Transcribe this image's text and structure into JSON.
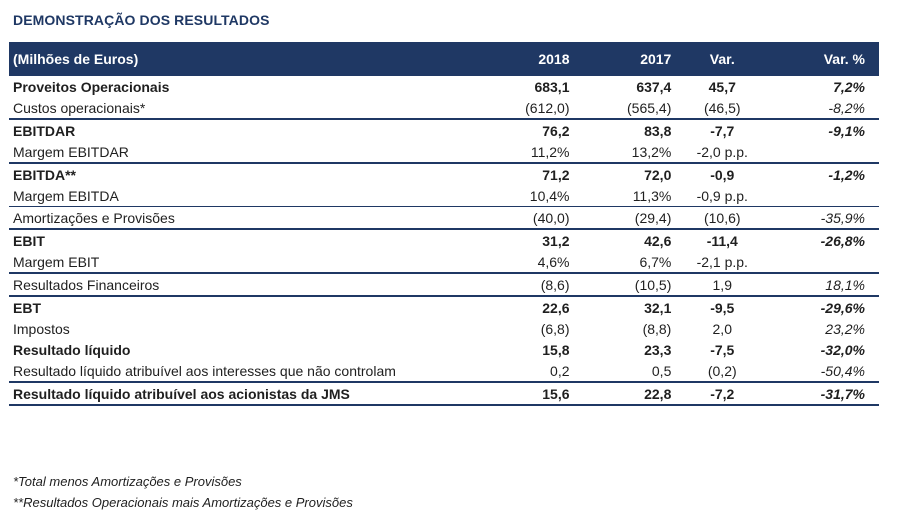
{
  "title": "DEMONSTRAÇÃO DOS RESULTADOS",
  "table": {
    "headers": [
      "(Milhões de Euros)",
      "2018",
      "2017",
      "Var.",
      "Var. %"
    ],
    "rows": [
      {
        "label": "Proveitos Operacionais",
        "v2018": "683,1",
        "v2017": "637,4",
        "var": "45,7",
        "varp": "7,2%"
      },
      {
        "label": "Custos operacionais*",
        "v2018": "(612,0)",
        "v2017": "(565,4)",
        "var": "(46,5)",
        "varp": "-8,2%"
      },
      {
        "label": "EBITDAR",
        "v2018": "76,2",
        "v2017": "83,8",
        "var": "-7,7",
        "varp": "-9,1%"
      },
      {
        "label": "Margem EBITDAR",
        "v2018": "11,2%",
        "v2017": "13,2%",
        "var": "-2,0 p.p.",
        "varp": ""
      },
      {
        "label": "EBITDA**",
        "v2018": "71,2",
        "v2017": "72,0",
        "var": "-0,9",
        "varp": "-1,2%"
      },
      {
        "label": "Margem EBITDA",
        "v2018": "10,4%",
        "v2017": "11,3%",
        "var": "-0,9 p.p.",
        "varp": ""
      },
      {
        "label": "Amortizações e Provisões",
        "v2018": "(40,0)",
        "v2017": "(29,4)",
        "var": "(10,6)",
        "varp": "-35,9%"
      },
      {
        "label": "EBIT",
        "v2018": "31,2",
        "v2017": "42,6",
        "var": "-11,4",
        "varp": "-26,8%"
      },
      {
        "label": "Margem EBIT",
        "v2018": "4,6%",
        "v2017": "6,7%",
        "var": "-2,1 p.p.",
        "varp": ""
      },
      {
        "label": "Resultados Financeiros",
        "v2018": "(8,6)",
        "v2017": "(10,5)",
        "var": "1,9",
        "varp": "18,1%"
      },
      {
        "label": "EBT",
        "v2018": "22,6",
        "v2017": "32,1",
        "var": "-9,5",
        "varp": "-29,6%"
      },
      {
        "label": "Impostos",
        "v2018": "(6,8)",
        "v2017": "(8,8)",
        "var": "2,0",
        "varp": "23,2%"
      },
      {
        "label": "Resultado líquido",
        "v2018": "15,8",
        "v2017": "23,3",
        "var": "-7,5",
        "varp": "-32,0%"
      },
      {
        "label": "Resultado líquido atribuível aos interesses que não controlam",
        "v2018": "0,2",
        "v2017": "0,5",
        "var": "(0,2)",
        "varp": "-50,4%"
      },
      {
        "label": "Resultado líquido atribuível aos acionistas da JMS",
        "v2018": "15,6",
        "v2017": "22,8",
        "var": "-7,2",
        "varp": "-31,7%"
      }
    ]
  },
  "notes": [
    "*Total menos Amortizações e Provisões",
    "**Resultados Operacionais mais Amortizações e Provisões"
  ]
}
